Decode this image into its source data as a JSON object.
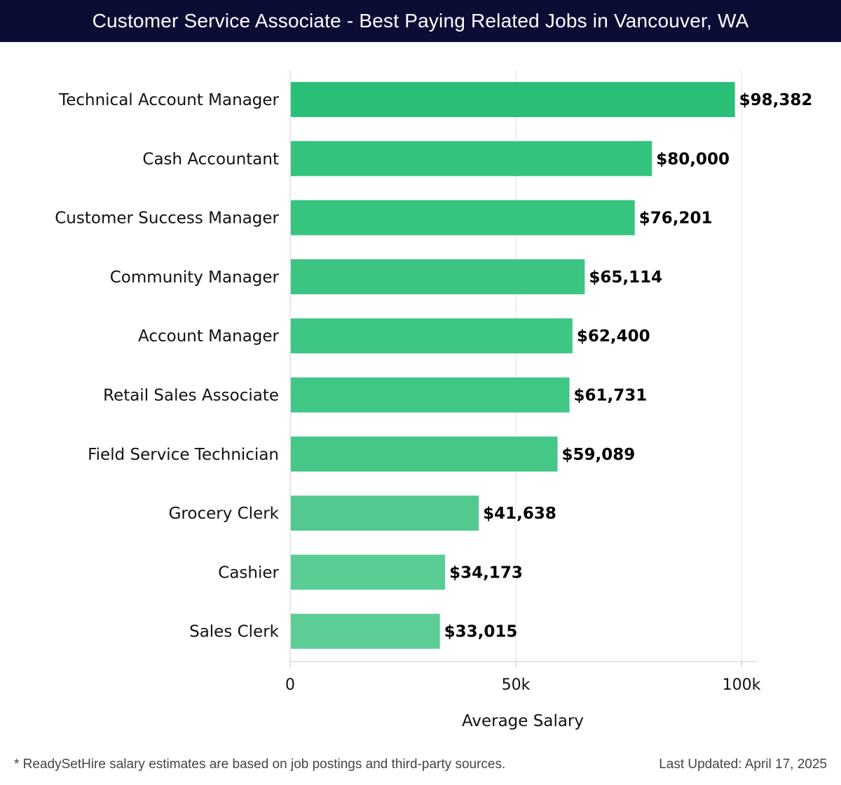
{
  "header": {
    "title": "Customer Service Associate - Best Paying Related Jobs in Vancouver, WA"
  },
  "chart_data": {
    "type": "bar",
    "orientation": "horizontal",
    "title": "Customer Service Associate - Best Paying Related Jobs in Vancouver, WA",
    "xlabel": "Average Salary",
    "ylabel": "",
    "xlim": [
      0,
      103500
    ],
    "xticks": [
      0,
      50000,
      100000
    ],
    "xtick_labels": [
      "0",
      "50k",
      "100k"
    ],
    "grid": true,
    "categories": [
      "Technical Account Manager",
      "Cash Accountant",
      "Customer Success Manager",
      "Community Manager",
      "Account Manager",
      "Retail Sales Associate",
      "Field Service Technician",
      "Grocery Clerk",
      "Cashier",
      "Sales Clerk"
    ],
    "values": [
      98382,
      80000,
      76201,
      65114,
      62400,
      61731,
      59089,
      41638,
      34173,
      33015
    ],
    "value_labels": [
      "$98,382",
      "$80,000",
      "$76,201",
      "$65,114",
      "$62,400",
      "$61,731",
      "$59,089",
      "$41,638",
      "$34,173",
      "$33,015"
    ],
    "bar_colors": [
      "#29bf76",
      "#33c37d",
      "#36c47f",
      "#3cc582",
      "#3ec684",
      "#40c685",
      "#45c787",
      "#52ca8f",
      "#5acd94",
      "#5ccd95"
    ]
  },
  "footer": {
    "note": "* ReadySetHire salary estimates are based on job postings and third-party sources.",
    "updated": "Last Updated: April 17, 2025"
  }
}
